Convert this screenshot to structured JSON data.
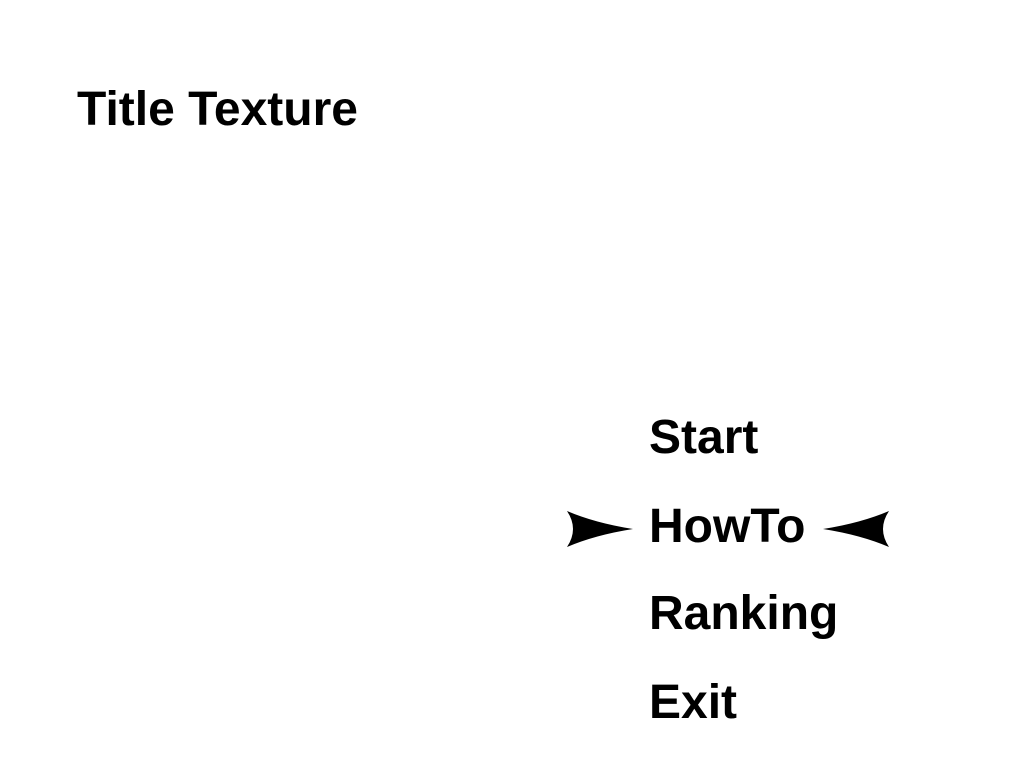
{
  "title": "Title Texture",
  "menu": {
    "items": [
      {
        "label": "Start"
      },
      {
        "label": "HowTo"
      },
      {
        "label": "Ranking"
      },
      {
        "label": "Exit"
      }
    ],
    "selected_index": 1
  },
  "colors": {
    "background": "#ffffff",
    "text": "#000000",
    "cursor": "#000000"
  },
  "icons": {
    "cursor_left": "right-pointing-arrowhead-icon",
    "cursor_right": "left-pointing-arrowhead-icon"
  }
}
